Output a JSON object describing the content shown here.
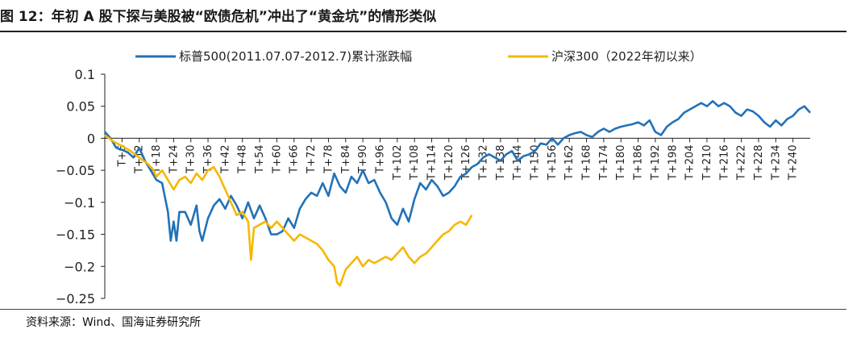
{
  "figure": {
    "title": "图 12：年初 A 股下探与美股被“欧债危机”冲出了“黄金坑”的情形类似",
    "source": "资料来源：Wind、国海证券研究所"
  },
  "colors": {
    "sp500": "#2272b8",
    "hs300": "#f5b800",
    "axis": "#222222"
  },
  "chart_data": {
    "type": "line",
    "x_label_prefix": "T+",
    "x_tick_start": 6,
    "x_tick_step": 6,
    "x_tick_end": 240,
    "xlim": [
      0,
      246
    ],
    "ylim": [
      -0.25,
      0.1
    ],
    "y_ticks": [
      0.1,
      0.05,
      0,
      -0.05,
      -0.1,
      -0.15,
      -0.2,
      -0.25
    ],
    "y_tick_labels": [
      "0.1",
      "0.05",
      "0",
      "−0.05",
      "−0.1",
      "−0.15",
      "−0.2",
      "−0.25"
    ],
    "legend_position": "top",
    "series": [
      {
        "name": "标普500(2011.07.07-2012.7)累计涨跌幅",
        "points": [
          [
            0,
            0.01
          ],
          [
            2,
            0
          ],
          [
            4,
            -0.015
          ],
          [
            6,
            -0.018
          ],
          [
            8,
            -0.022
          ],
          [
            10,
            -0.03
          ],
          [
            12,
            -0.015
          ],
          [
            14,
            -0.035
          ],
          [
            16,
            -0.05
          ],
          [
            18,
            -0.065
          ],
          [
            20,
            -0.07
          ],
          [
            22,
            -0.115
          ],
          [
            23,
            -0.16
          ],
          [
            24,
            -0.13
          ],
          [
            25,
            -0.16
          ],
          [
            26,
            -0.115
          ],
          [
            28,
            -0.115
          ],
          [
            30,
            -0.135
          ],
          [
            32,
            -0.105
          ],
          [
            33,
            -0.145
          ],
          [
            34,
            -0.16
          ],
          [
            36,
            -0.125
          ],
          [
            38,
            -0.105
          ],
          [
            40,
            -0.095
          ],
          [
            42,
            -0.11
          ],
          [
            44,
            -0.09
          ],
          [
            46,
            -0.105
          ],
          [
            48,
            -0.125
          ],
          [
            50,
            -0.1
          ],
          [
            52,
            -0.125
          ],
          [
            54,
            -0.105
          ],
          [
            56,
            -0.125
          ],
          [
            58,
            -0.15
          ],
          [
            60,
            -0.15
          ],
          [
            62,
            -0.145
          ],
          [
            64,
            -0.125
          ],
          [
            66,
            -0.14
          ],
          [
            68,
            -0.11
          ],
          [
            70,
            -0.095
          ],
          [
            72,
            -0.085
          ],
          [
            74,
            -0.09
          ],
          [
            76,
            -0.07
          ],
          [
            78,
            -0.09
          ],
          [
            80,
            -0.055
          ],
          [
            82,
            -0.075
          ],
          [
            84,
            -0.085
          ],
          [
            86,
            -0.06
          ],
          [
            88,
            -0.07
          ],
          [
            90,
            -0.05
          ],
          [
            92,
            -0.07
          ],
          [
            94,
            -0.065
          ],
          [
            96,
            -0.085
          ],
          [
            98,
            -0.1
          ],
          [
            100,
            -0.125
          ],
          [
            102,
            -0.135
          ],
          [
            104,
            -0.11
          ],
          [
            106,
            -0.13
          ],
          [
            108,
            -0.095
          ],
          [
            110,
            -0.07
          ],
          [
            112,
            -0.08
          ],
          [
            114,
            -0.065
          ],
          [
            116,
            -0.075
          ],
          [
            118,
            -0.09
          ],
          [
            120,
            -0.085
          ],
          [
            122,
            -0.075
          ],
          [
            124,
            -0.06
          ],
          [
            126,
            -0.055
          ],
          [
            128,
            -0.045
          ],
          [
            130,
            -0.04
          ],
          [
            132,
            -0.03
          ],
          [
            134,
            -0.025
          ],
          [
            136,
            -0.03
          ],
          [
            138,
            -0.035
          ],
          [
            140,
            -0.025
          ],
          [
            142,
            -0.02
          ],
          [
            144,
            -0.035
          ],
          [
            146,
            -0.028
          ],
          [
            148,
            -0.025
          ],
          [
            150,
            -0.02
          ],
          [
            152,
            -0.008
          ],
          [
            154,
            -0.01
          ],
          [
            156,
            0
          ],
          [
            158,
            -0.01
          ],
          [
            160,
            0
          ],
          [
            162,
            0.005
          ],
          [
            164,
            0.008
          ],
          [
            166,
            0.01
          ],
          [
            168,
            0.005
          ],
          [
            170,
            0.002
          ],
          [
            172,
            0.01
          ],
          [
            174,
            0.015
          ],
          [
            176,
            0.01
          ],
          [
            178,
            0.015
          ],
          [
            180,
            0.018
          ],
          [
            182,
            0.02
          ],
          [
            184,
            0.022
          ],
          [
            186,
            0.025
          ],
          [
            188,
            0.02
          ],
          [
            190,
            0.028
          ],
          [
            192,
            0.01
          ],
          [
            194,
            0.005
          ],
          [
            196,
            0.018
          ],
          [
            198,
            0.025
          ],
          [
            200,
            0.03
          ],
          [
            202,
            0.04
          ],
          [
            204,
            0.045
          ],
          [
            206,
            0.05
          ],
          [
            208,
            0.055
          ],
          [
            210,
            0.05
          ],
          [
            212,
            0.058
          ],
          [
            214,
            0.05
          ],
          [
            216,
            0.055
          ],
          [
            218,
            0.05
          ],
          [
            220,
            0.04
          ],
          [
            222,
            0.035
          ],
          [
            224,
            0.045
          ],
          [
            226,
            0.042
          ],
          [
            228,
            0.035
          ],
          [
            230,
            0.025
          ],
          [
            232,
            0.018
          ],
          [
            234,
            0.028
          ],
          [
            236,
            0.02
          ],
          [
            238,
            0.03
          ],
          [
            240,
            0.035
          ],
          [
            242,
            0.045
          ],
          [
            244,
            0.05
          ],
          [
            246,
            0.04
          ]
        ]
      },
      {
        "name": "沪深300（2022年初以来）",
        "points": [
          [
            0,
            0.005
          ],
          [
            3,
            -0.005
          ],
          [
            6,
            -0.012
          ],
          [
            9,
            -0.02
          ],
          [
            12,
            -0.03
          ],
          [
            15,
            -0.04
          ],
          [
            17,
            -0.05
          ],
          [
            18,
            -0.06
          ],
          [
            20,
            -0.05
          ],
          [
            22,
            -0.065
          ],
          [
            24,
            -0.08
          ],
          [
            26,
            -0.065
          ],
          [
            28,
            -0.06
          ],
          [
            30,
            -0.07
          ],
          [
            32,
            -0.055
          ],
          [
            34,
            -0.065
          ],
          [
            36,
            -0.05
          ],
          [
            38,
            -0.045
          ],
          [
            40,
            -0.06
          ],
          [
            42,
            -0.08
          ],
          [
            44,
            -0.1
          ],
          [
            46,
            -0.12
          ],
          [
            48,
            -0.115
          ],
          [
            50,
            -0.13
          ],
          [
            51,
            -0.19
          ],
          [
            52,
            -0.14
          ],
          [
            54,
            -0.135
          ],
          [
            56,
            -0.13
          ],
          [
            58,
            -0.14
          ],
          [
            60,
            -0.13
          ],
          [
            62,
            -0.14
          ],
          [
            64,
            -0.15
          ],
          [
            66,
            -0.16
          ],
          [
            68,
            -0.15
          ],
          [
            70,
            -0.155
          ],
          [
            72,
            -0.16
          ],
          [
            74,
            -0.165
          ],
          [
            76,
            -0.175
          ],
          [
            78,
            -0.19
          ],
          [
            80,
            -0.2
          ],
          [
            81,
            -0.225
          ],
          [
            82,
            -0.23
          ],
          [
            84,
            -0.205
          ],
          [
            86,
            -0.195
          ],
          [
            88,
            -0.185
          ],
          [
            90,
            -0.2
          ],
          [
            92,
            -0.19
          ],
          [
            94,
            -0.195
          ],
          [
            96,
            -0.19
          ],
          [
            98,
            -0.185
          ],
          [
            100,
            -0.19
          ],
          [
            102,
            -0.18
          ],
          [
            104,
            -0.17
          ],
          [
            106,
            -0.185
          ],
          [
            108,
            -0.195
          ],
          [
            110,
            -0.185
          ],
          [
            112,
            -0.18
          ],
          [
            114,
            -0.17
          ],
          [
            116,
            -0.16
          ],
          [
            118,
            -0.15
          ],
          [
            120,
            -0.145
          ],
          [
            122,
            -0.135
          ],
          [
            124,
            -0.13
          ],
          [
            126,
            -0.135
          ],
          [
            128,
            -0.12
          ]
        ]
      }
    ]
  }
}
